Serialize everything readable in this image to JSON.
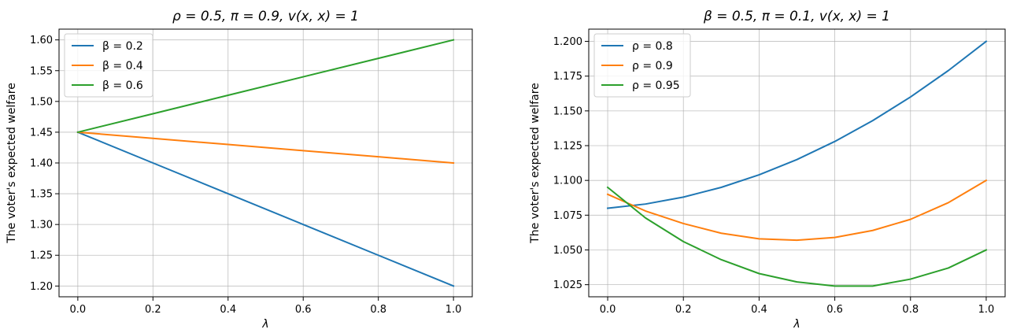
{
  "chart_data": [
    {
      "type": "line",
      "title": "ρ = 0.5, π = 0.9, v(x, x) = 1",
      "xlabel": "λ",
      "ylabel": "The voter's expected welfare",
      "xlim": [
        -0.05,
        1.05
      ],
      "ylim": [
        1.1825,
        1.6175
      ],
      "xticks": [
        0.0,
        0.2,
        0.4,
        0.6,
        0.8,
        1.0
      ],
      "xtick_labels": [
        "0.0",
        "0.2",
        "0.4",
        "0.6",
        "0.8",
        "1.0"
      ],
      "yticks": [
        1.2,
        1.25,
        1.3,
        1.35,
        1.4,
        1.45,
        1.5,
        1.55,
        1.6
      ],
      "ytick_labels": [
        "1.20",
        "1.25",
        "1.30",
        "1.35",
        "1.40",
        "1.45",
        "1.50",
        "1.55",
        "1.60"
      ],
      "grid": true,
      "legend": "upper-left",
      "x": [
        0.0,
        0.2,
        0.4,
        0.6,
        0.8,
        1.0
      ],
      "series": [
        {
          "name": "β = 0.2",
          "color": "#1f77b4",
          "values": [
            1.45,
            1.4,
            1.35,
            1.3,
            1.25,
            1.2
          ]
        },
        {
          "name": "β = 0.4",
          "color": "#ff7f0e",
          "values": [
            1.45,
            1.44,
            1.43,
            1.42,
            1.41,
            1.4
          ]
        },
        {
          "name": "β = 0.6",
          "color": "#2ca02c",
          "values": [
            1.45,
            1.48,
            1.51,
            1.54,
            1.57,
            1.6
          ]
        }
      ]
    },
    {
      "type": "line",
      "title": "β = 0.5, π = 0.1, v(x, x) = 1",
      "xlabel": "λ",
      "ylabel": "The voter's expected welfare",
      "xlim": [
        -0.05,
        1.05
      ],
      "ylim": [
        1.0163,
        1.2088
      ],
      "xticks": [
        0.0,
        0.2,
        0.4,
        0.6,
        0.8,
        1.0
      ],
      "xtick_labels": [
        "0.0",
        "0.2",
        "0.4",
        "0.6",
        "0.8",
        "1.0"
      ],
      "yticks": [
        1.025,
        1.05,
        1.075,
        1.1,
        1.125,
        1.15,
        1.175,
        1.2
      ],
      "ytick_labels": [
        "1.025",
        "1.050",
        "1.075",
        "1.100",
        "1.125",
        "1.150",
        "1.175",
        "1.200"
      ],
      "grid": true,
      "legend": "upper-left",
      "x": [
        0.0,
        0.1,
        0.2,
        0.3,
        0.4,
        0.5,
        0.6,
        0.7,
        0.8,
        0.9,
        1.0
      ],
      "series": [
        {
          "name": "ρ = 0.8",
          "color": "#1f77b4",
          "values": [
            1.08,
            1.083,
            1.088,
            1.095,
            1.104,
            1.115,
            1.128,
            1.143,
            1.16,
            1.179,
            1.2
          ]
        },
        {
          "name": "ρ = 0.9",
          "color": "#ff7f0e",
          "values": [
            1.09,
            1.078,
            1.069,
            1.062,
            1.058,
            1.057,
            1.059,
            1.064,
            1.072,
            1.084,
            1.1
          ]
        },
        {
          "name": "ρ = 0.95",
          "color": "#2ca02c",
          "values": [
            1.095,
            1.073,
            1.056,
            1.043,
            1.033,
            1.027,
            1.024,
            1.024,
            1.029,
            1.037,
            1.05
          ]
        }
      ]
    }
  ]
}
